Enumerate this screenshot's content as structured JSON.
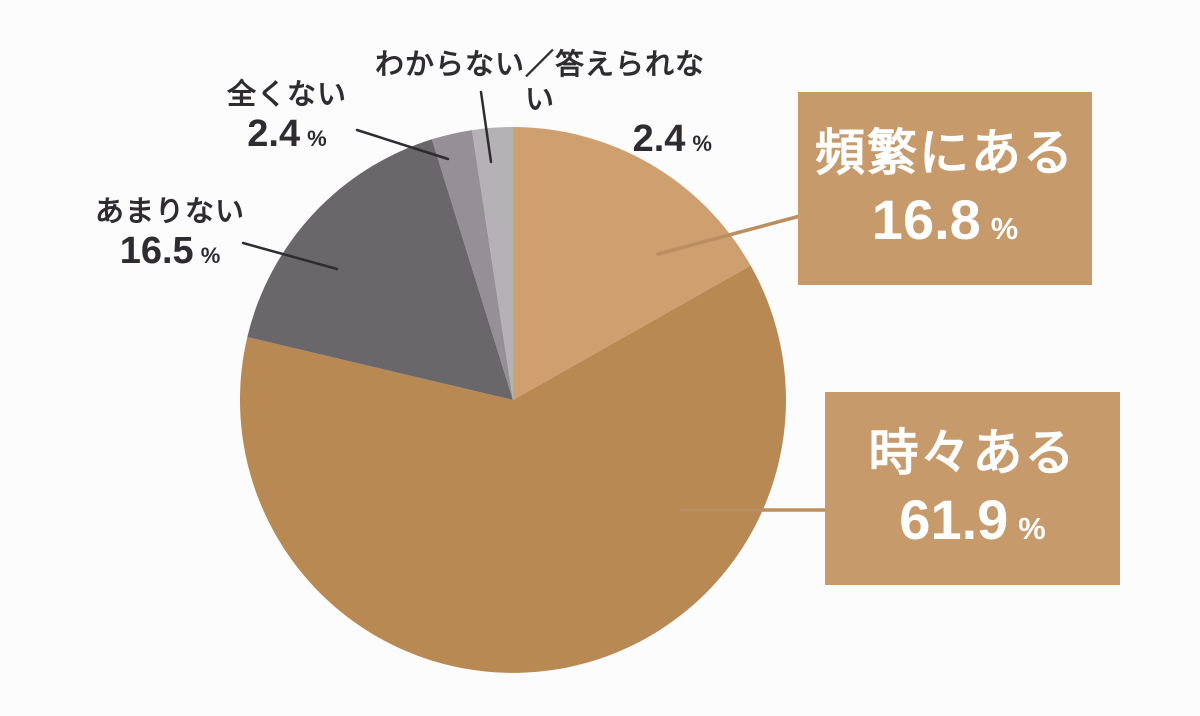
{
  "chart_data": {
    "type": "pie",
    "title": "",
    "unit": "%",
    "start_angle_deg": 0,
    "direction": "clockwise",
    "legend_position": "none",
    "slices": [
      {
        "label": "頻繁にある",
        "value": 16.8,
        "color": "#CFA06F",
        "label_style": "callout-box"
      },
      {
        "label": "時々ある",
        "value": 61.9,
        "color": "#B98954",
        "label_style": "callout-box"
      },
      {
        "label": "あまりない",
        "value": 16.5,
        "color": "#6A676A",
        "label_style": "outside-text"
      },
      {
        "label": "全くない",
        "value": 2.4,
        "color": "#949096",
        "label_style": "outside-text"
      },
      {
        "label": "わからない／答えられない",
        "value": 2.4,
        "color": "#B4B2B5",
        "label_style": "outside-text"
      }
    ]
  },
  "colors": {
    "background": "#FCFCFD",
    "callout_bg": "#C69A6B",
    "callout_text": "#FFFFFF",
    "callout_line": "#BB8E5F",
    "label_line": "#2E2C30",
    "label_text": "#2E2C30"
  }
}
